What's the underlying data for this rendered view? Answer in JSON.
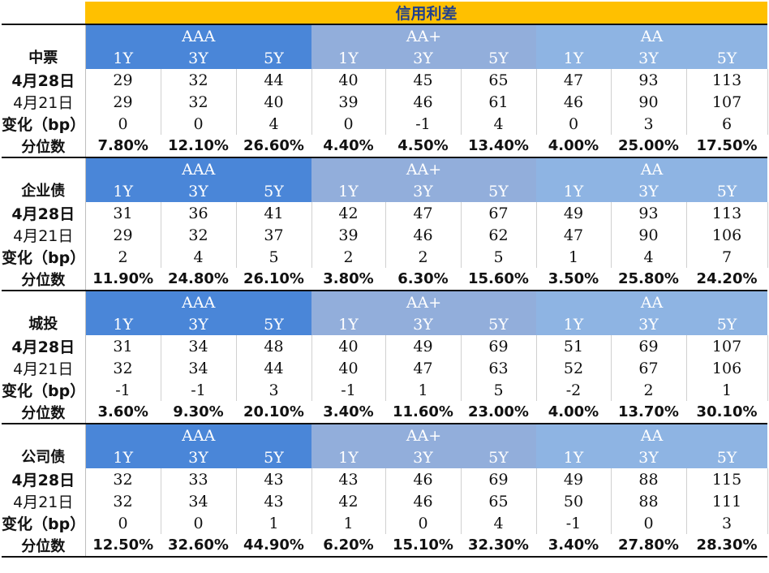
{
  "title": "信用利差",
  "ratings": [
    "AAA",
    "AA+",
    "AA"
  ],
  "tenors": [
    "1Y",
    "3Y",
    "5Y"
  ],
  "row_labels": {
    "current": "4月28日",
    "previous": "4月21日",
    "change": "变化（bp）",
    "percentile": "分位数"
  },
  "sections": [
    {
      "name": "中票",
      "current": [
        "29",
        "32",
        "44",
        "40",
        "45",
        "65",
        "47",
        "93",
        "113"
      ],
      "previous": [
        "29",
        "32",
        "40",
        "39",
        "46",
        "61",
        "46",
        "90",
        "107"
      ],
      "change": [
        "0",
        "0",
        "4",
        "0",
        "-1",
        "4",
        "0",
        "3",
        "6"
      ],
      "percentile": [
        "7.80%",
        "12.10%",
        "26.60%",
        "4.40%",
        "4.50%",
        "13.40%",
        "4.00%",
        "25.00%",
        "17.50%"
      ]
    },
    {
      "name": "企业债",
      "current": [
        "31",
        "36",
        "41",
        "42",
        "47",
        "67",
        "49",
        "93",
        "113"
      ],
      "previous": [
        "29",
        "32",
        "37",
        "39",
        "46",
        "62",
        "47",
        "90",
        "106"
      ],
      "change": [
        "2",
        "4",
        "5",
        "2",
        "2",
        "5",
        "1",
        "4",
        "7"
      ],
      "percentile": [
        "11.90%",
        "24.80%",
        "26.10%",
        "3.80%",
        "6.30%",
        "15.60%",
        "3.50%",
        "25.80%",
        "24.20%"
      ]
    },
    {
      "name": "城投",
      "current": [
        "31",
        "34",
        "48",
        "40",
        "49",
        "69",
        "51",
        "69",
        "107"
      ],
      "previous": [
        "32",
        "34",
        "44",
        "40",
        "47",
        "63",
        "52",
        "67",
        "106"
      ],
      "change": [
        "-1",
        "-1",
        "3",
        "-1",
        "1",
        "5",
        "-2",
        "2",
        "1"
      ],
      "percentile": [
        "3.60%",
        "9.30%",
        "20.10%",
        "3.40%",
        "11.60%",
        "23.00%",
        "4.00%",
        "13.70%",
        "30.10%"
      ]
    },
    {
      "name": "公司债",
      "current": [
        "32",
        "33",
        "43",
        "43",
        "46",
        "69",
        "49",
        "88",
        "115"
      ],
      "previous": [
        "32",
        "34",
        "43",
        "42",
        "46",
        "65",
        "50",
        "88",
        "111"
      ],
      "change": [
        "0",
        "0",
        "1",
        "1",
        "0",
        "4",
        "-1",
        "0",
        "3"
      ],
      "percentile": [
        "12.50%",
        "32.60%",
        "44.90%",
        "6.20%",
        "15.10%",
        "32.30%",
        "3.40%",
        "27.80%",
        "28.30%"
      ]
    }
  ],
  "colors": {
    "title_bg": "#ffc000",
    "title_text": "#1f3f8f",
    "aaa_header": "#4a86d8",
    "aa_plus_header": "#92aedb",
    "aa_header": "#8eb4e3",
    "header_text": "#ffffff"
  }
}
